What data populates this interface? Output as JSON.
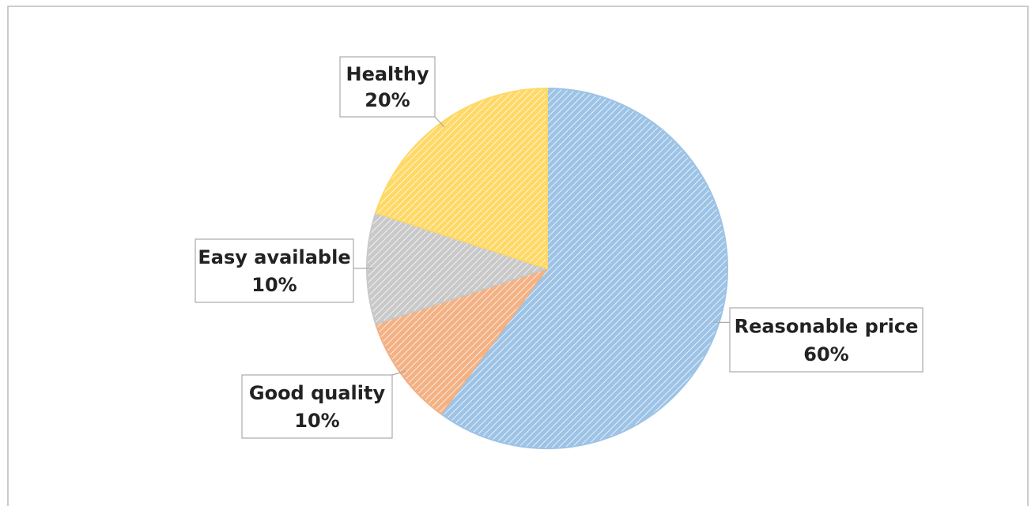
{
  "chart_data": {
    "type": "pie",
    "categories": [
      "Reasonable price",
      "Good quality",
      "Easy available",
      "Healthy"
    ],
    "values": [
      60,
      10,
      10,
      20
    ],
    "value_labels": [
      "60%",
      "10%",
      "10%",
      "20%"
    ],
    "colors": [
      "#9dc3e6",
      "#f4b183",
      "#c9c9c9",
      "#ffd966"
    ]
  }
}
